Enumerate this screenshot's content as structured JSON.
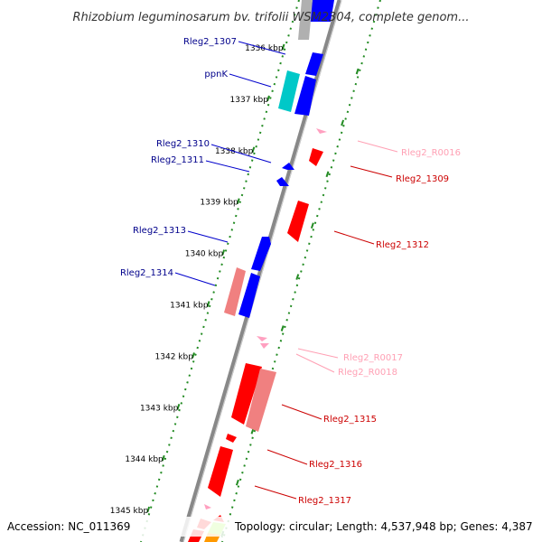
{
  "title": "Rhizobium leguminosarum bv. trifolii WSM2304, complete genom...",
  "footer": {
    "accession": "Accession: NC_011369",
    "topology": "Topology: circular; Length: 4,537,948 bp; Genes: 4,387"
  },
  "colors": {
    "forward_gene": "#0000ff",
    "reverse_gene": "#ff0000",
    "reverse_rna": "#f08080",
    "forward_rna": "#00d0d0",
    "light_rna": "#ffa0c0",
    "backbone": "#909090",
    "tick": "#228b22"
  },
  "kbp_ticks": [
    {
      "label": "1336 kbp"
    },
    {
      "label": "1337 kbp"
    },
    {
      "label": "1338 kbp"
    },
    {
      "label": "1339 kbp"
    },
    {
      "label": "1340 kbp"
    },
    {
      "label": "1341 kbp"
    },
    {
      "label": "1342 kbp"
    },
    {
      "label": "1343 kbp"
    },
    {
      "label": "1344 kbp"
    },
    {
      "label": "1345 kbp"
    }
  ],
  "labels_left": [
    {
      "text": "Rleg2_1307",
      "color": "#00008b"
    },
    {
      "text": "ppnK",
      "color": "#00008b"
    },
    {
      "text": "Rleg2_1310",
      "color": "#00008b"
    },
    {
      "text": "Rleg2_1311",
      "color": "#00008b"
    },
    {
      "text": "Rleg2_1313",
      "color": "#00008b"
    },
    {
      "text": "Rleg2_1314",
      "color": "#00008b"
    }
  ],
  "labels_right": [
    {
      "text": "Rleg2_R0016",
      "color": "#ffa0b4"
    },
    {
      "text": "Rleg2_1309",
      "color": "#cc0000"
    },
    {
      "text": "Rleg2_1312",
      "color": "#cc0000"
    },
    {
      "text": "Rleg2_R0017",
      "color": "#ffa0b4"
    },
    {
      "text": "Rleg2_R0018",
      "color": "#ffa0b4"
    },
    {
      "text": "Rleg2_1315",
      "color": "#cc0000"
    },
    {
      "text": "Rleg2_1316",
      "color": "#cc0000"
    },
    {
      "text": "Rleg2_1317",
      "color": "#cc0000"
    }
  ]
}
